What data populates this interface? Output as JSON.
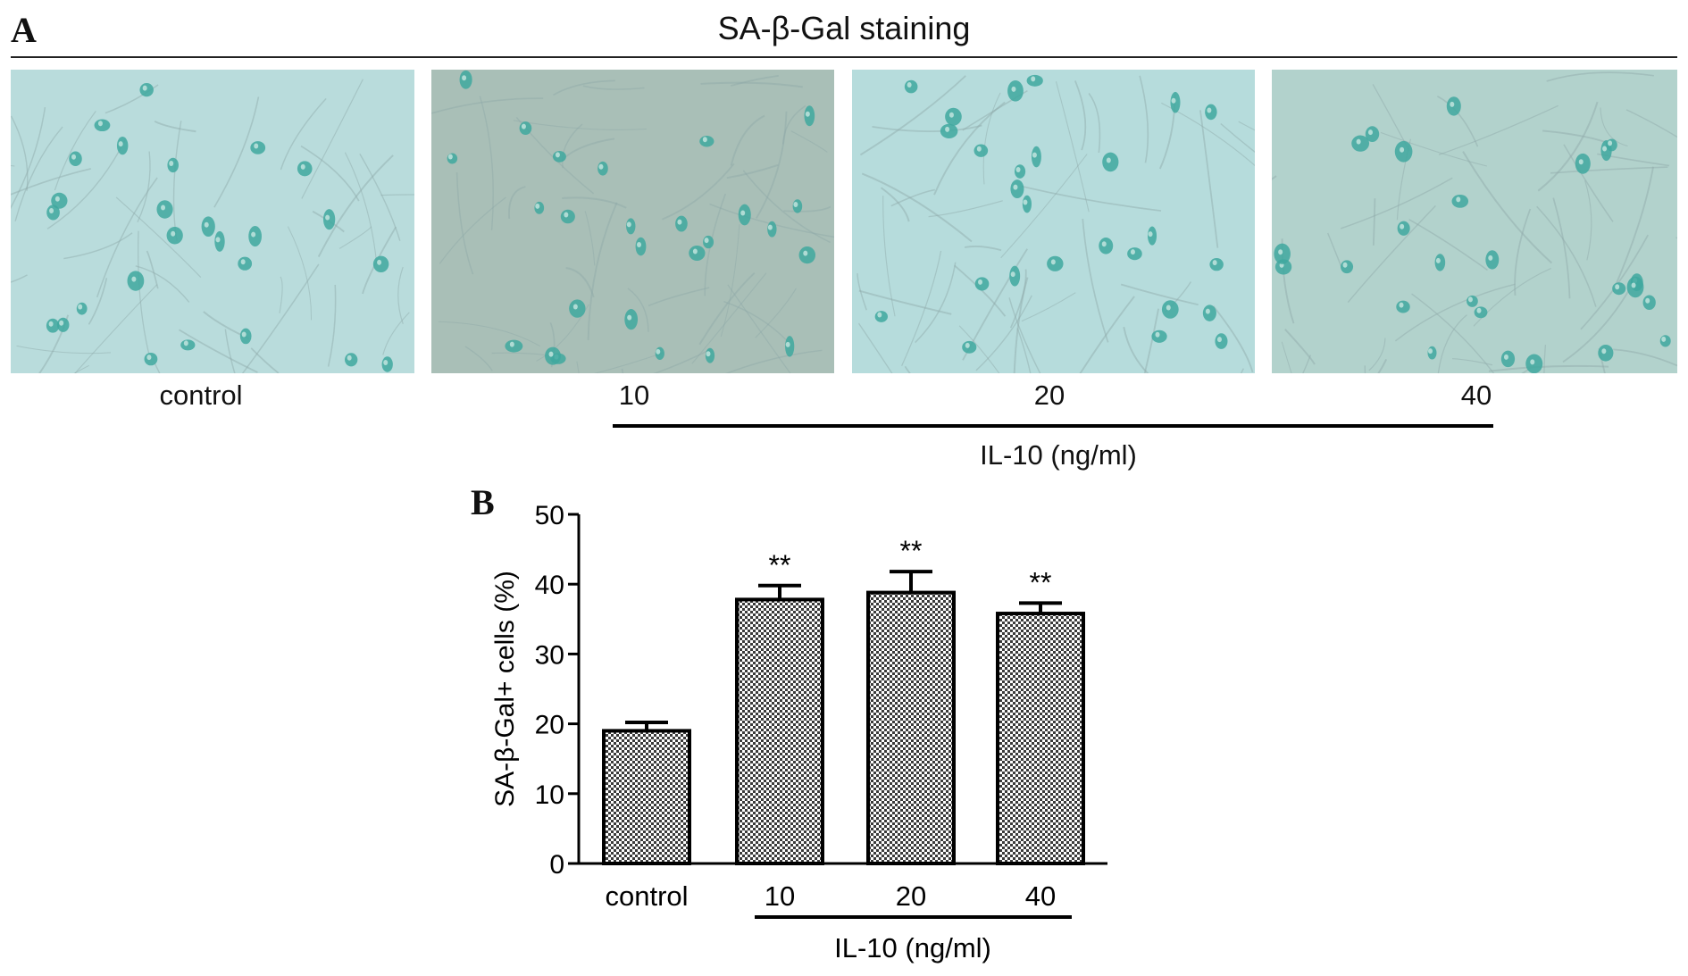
{
  "panel_a": {
    "letter": "A",
    "title": "SA-β-Gal staining",
    "images": [
      {
        "label": "control",
        "tint": "#b9dcdc"
      },
      {
        "label": "10",
        "tint": "#a9bfb7"
      },
      {
        "label": "20",
        "tint": "#b6dcdc"
      },
      {
        "label": "40",
        "tint": "#b2d2cc"
      }
    ],
    "group_label": "IL-10 (ng/ml)"
  },
  "panel_b": {
    "letter": "B"
  },
  "chart_data": {
    "type": "bar",
    "categories": [
      "control",
      "10",
      "20",
      "40"
    ],
    "values": [
      19,
      37.8,
      38.8,
      35.8
    ],
    "error": [
      1.2,
      2.0,
      3.0,
      1.5
    ],
    "significance": [
      "",
      "**",
      "**",
      "**"
    ],
    "ylabel": "SA-β-Gal+ cells (%)",
    "ylim": [
      0,
      50
    ],
    "yticks": [
      0,
      10,
      20,
      30,
      40,
      50
    ],
    "group_label": "IL-10 (ng/ml)",
    "bar_fill": "crosshatch",
    "grid": false
  }
}
